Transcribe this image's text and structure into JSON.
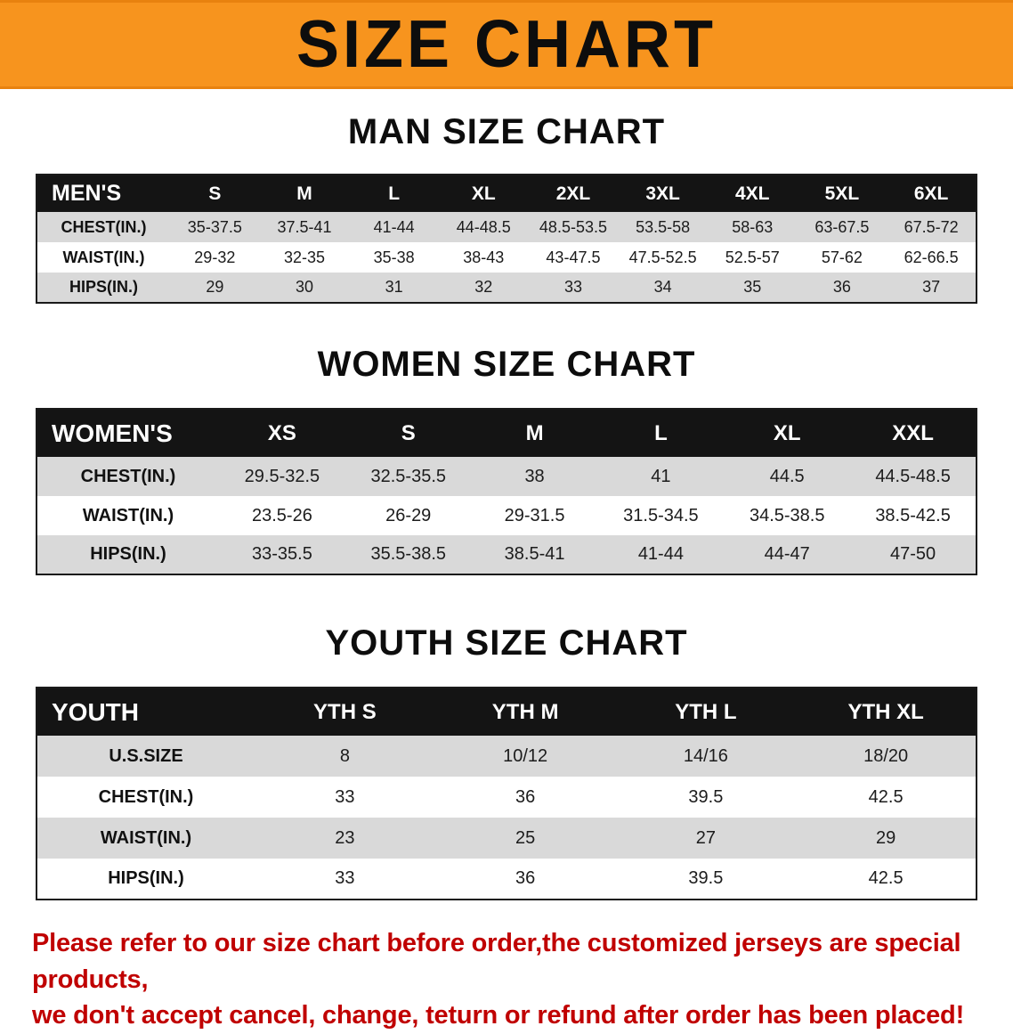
{
  "banner": {
    "title": "SIZE CHART"
  },
  "colors": {
    "banner_bg": "#F7941E",
    "table_header_bg": "#141414",
    "row_shade": "#D9D9D9",
    "notice_color": "#C00000"
  },
  "sections": {
    "men": {
      "heading": "MAN SIZE CHART",
      "table": {
        "header": [
          "MEN'S",
          "S",
          "M",
          "L",
          "XL",
          "2XL",
          "3XL",
          "4XL",
          "5XL",
          "6XL"
        ],
        "rows": [
          {
            "label": "CHEST(IN.)",
            "values": [
              "35-37.5",
              "37.5-41",
              "41-44",
              "44-48.5",
              "48.5-53.5",
              "53.5-58",
              "58-63",
              "63-67.5",
              "67.5-72"
            ]
          },
          {
            "label": "WAIST(IN.)",
            "values": [
              "29-32",
              "32-35",
              "35-38",
              "38-43",
              "43-47.5",
              "47.5-52.5",
              "52.5-57",
              "57-62",
              "62-66.5"
            ]
          },
          {
            "label": "HIPS(IN.)",
            "values": [
              "29",
              "30",
              "31",
              "32",
              "33",
              "34",
              "35",
              "36",
              "37"
            ]
          }
        ]
      }
    },
    "women": {
      "heading": "WOMEN SIZE CHART",
      "table": {
        "header": [
          "WOMEN'S",
          "XS",
          "S",
          "M",
          "L",
          "XL",
          "XXL"
        ],
        "rows": [
          {
            "label": "CHEST(IN.)",
            "values": [
              "29.5-32.5",
              "32.5-35.5",
              "38",
              "41",
              "44.5",
              "44.5-48.5"
            ]
          },
          {
            "label": "WAIST(IN.)",
            "values": [
              "23.5-26",
              "26-29",
              "29-31.5",
              "31.5-34.5",
              "34.5-38.5",
              "38.5-42.5"
            ]
          },
          {
            "label": "HIPS(IN.)",
            "values": [
              "33-35.5",
              "35.5-38.5",
              "38.5-41",
              "41-44",
              "44-47",
              "47-50"
            ]
          }
        ]
      }
    },
    "youth": {
      "heading": "YOUTH SIZE CHART",
      "table": {
        "header": [
          "YOUTH",
          "YTH S",
          "YTH M",
          "YTH L",
          "YTH XL"
        ],
        "rows": [
          {
            "label": "U.S.SIZE",
            "values": [
              "8",
              "10/12",
              "14/16",
              "18/20"
            ]
          },
          {
            "label": "CHEST(IN.)",
            "values": [
              "33",
              "36",
              "39.5",
              "42.5"
            ]
          },
          {
            "label": "WAIST(IN.)",
            "values": [
              "23",
              "25",
              "27",
              "29"
            ]
          },
          {
            "label": "HIPS(IN.)",
            "values": [
              "33",
              "36",
              "39.5",
              "42.5"
            ]
          }
        ]
      }
    }
  },
  "footer": {
    "line1": "Please refer to our size chart before order,the customized jerseys are special products,",
    "line2": "we don't accept cancel, change, teturn or refund after order has been placed!"
  }
}
